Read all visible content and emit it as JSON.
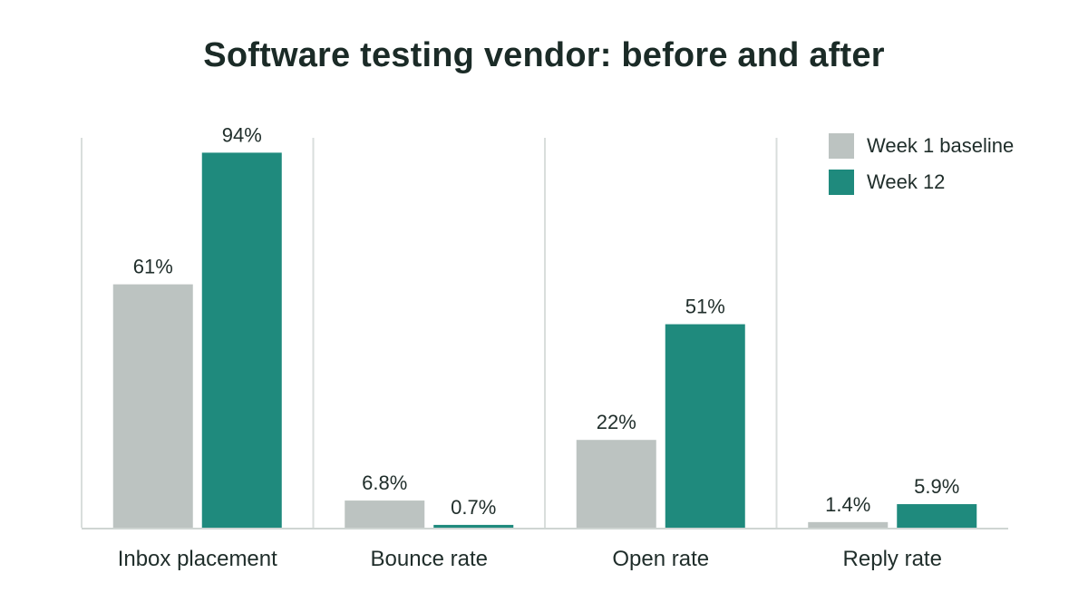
{
  "chart_data": {
    "type": "bar",
    "title": "Software testing vendor: before and after",
    "categories": [
      "Inbox placement",
      "Bounce rate",
      "Open rate",
      "Reply rate"
    ],
    "series": [
      {
        "name": "Week 1 baseline",
        "color": "#bcc3c1",
        "values": [
          61,
          6.8,
          22,
          1.4
        ],
        "labels": [
          "61%",
          "6.8%",
          "22%",
          "1.4%"
        ]
      },
      {
        "name": "Week 12",
        "color": "#1f8a7d",
        "values": [
          94,
          0.7,
          51,
          5.9
        ],
        "labels": [
          "94%",
          "0.7%",
          "51%",
          "5.9%"
        ]
      }
    ],
    "ylim": [
      0,
      100
    ],
    "legend": "top-right",
    "grid": false,
    "separators": true
  }
}
